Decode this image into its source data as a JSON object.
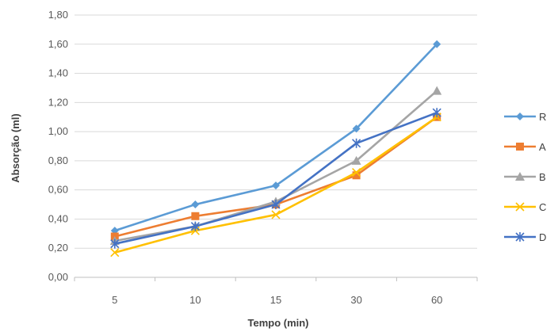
{
  "chart_data": {
    "type": "line",
    "title": "",
    "xlabel": "Tempo (min)",
    "ylabel": "Absorção (ml)",
    "categories": [
      "5",
      "10",
      "15",
      "30",
      "60"
    ],
    "ylim": [
      0,
      1.8
    ],
    "yticks": [
      "0,00",
      "0,20",
      "0,40",
      "0,60",
      "0,80",
      "1,00",
      "1,20",
      "1,40",
      "1,60",
      "1,80"
    ],
    "grid": true,
    "legend": "right",
    "series": [
      {
        "name": "R",
        "values": [
          0.32,
          0.5,
          0.63,
          1.02,
          1.6
        ],
        "color": "#5B9BD5",
        "marker": "diamond"
      },
      {
        "name": "A",
        "values": [
          0.28,
          0.42,
          0.5,
          0.7,
          1.1
        ],
        "color": "#ED7D31",
        "marker": "square"
      },
      {
        "name": "B",
        "values": [
          0.25,
          0.35,
          0.52,
          0.8,
          1.28
        ],
        "color": "#A5A5A5",
        "marker": "triangle"
      },
      {
        "name": "C",
        "values": [
          0.17,
          0.32,
          0.43,
          0.72,
          1.1
        ],
        "color": "#FFC000",
        "marker": "x"
      },
      {
        "name": "D",
        "values": [
          0.23,
          0.35,
          0.5,
          0.92,
          1.13
        ],
        "color": "#4472C4",
        "marker": "star"
      }
    ]
  }
}
